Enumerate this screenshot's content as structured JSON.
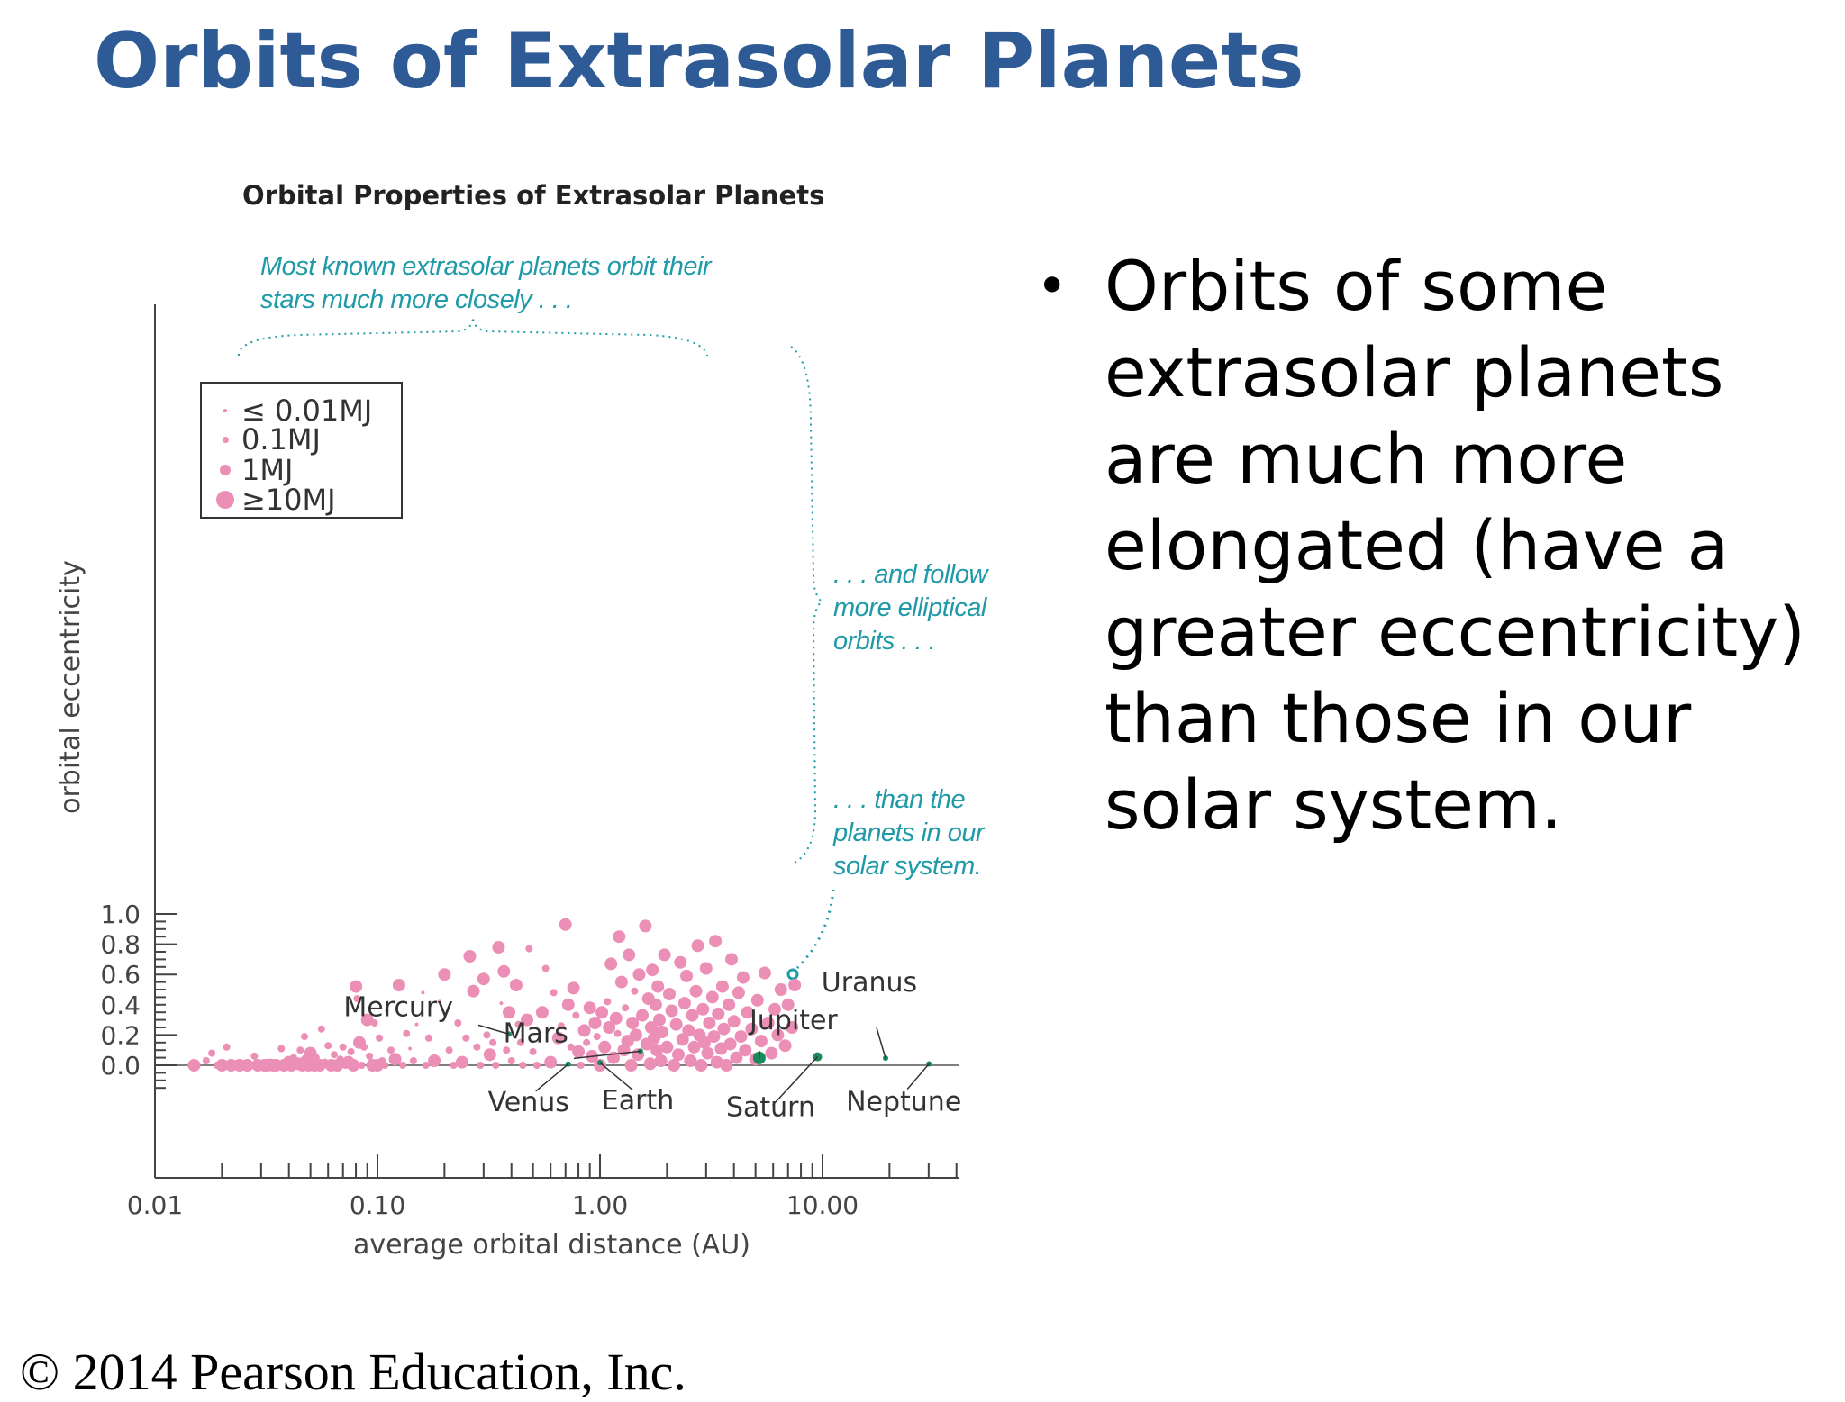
{
  "slide": {
    "title": "Orbits of Extrasolar Planets",
    "bullet": "Orbits of some extrasolar planets are much more elongated (have a greater eccentricity) than those in our solar system.",
    "copyright": "© 2014 Pearson Education, Inc."
  },
  "colors": {
    "title": "#2e5b95",
    "exoplanet": "#ec8fb6",
    "solar_planet": "#1a8a5a",
    "annotation": "#1f9aa8"
  },
  "chart_data": {
    "type": "scatter",
    "title": "Orbital Properties of Extrasolar Planets",
    "xlabel": "average orbital distance (AU)",
    "ylabel": "orbital eccentricity",
    "x_scale": "log",
    "xlim": [
      0.01,
      40
    ],
    "ylim": [
      -0.15,
      1.0
    ],
    "x_ticks": [
      "0.01",
      "0.10",
      "1.00",
      "10.00"
    ],
    "y_ticks": [
      "0.0",
      "0.2",
      "0.4",
      "0.6",
      "0.8",
      "1.0"
    ],
    "grid": false,
    "legend": {
      "placement": "top-left",
      "entries": [
        {
          "label": "≤ 0.01MJ",
          "size": 1
        },
        {
          "label": "0.1MJ",
          "size": 2
        },
        {
          "label": "1MJ",
          "size": 3
        },
        {
          "label": "≥10MJ",
          "size": 4
        }
      ]
    },
    "annotations": [
      "Most known extrasolar planets orbit their\nstars much more closely . . .",
      ". . . and follow\nmore elliptical\norbits . . .",
      ". . . than the\nplanets in our\nsolar system."
    ],
    "solar_system": [
      {
        "name": "Mercury",
        "x": 0.39,
        "y": 0.206
      },
      {
        "name": "Venus",
        "x": 0.72,
        "y": 0.007
      },
      {
        "name": "Earth",
        "x": 1.0,
        "y": 0.017
      },
      {
        "name": "Mars",
        "x": 1.52,
        "y": 0.093
      },
      {
        "name": "Jupiter",
        "x": 5.2,
        "y": 0.048
      },
      {
        "name": "Saturn",
        "x": 9.5,
        "y": 0.056
      },
      {
        "name": "Uranus",
        "x": 19.2,
        "y": 0.047
      },
      {
        "name": "Neptune",
        "x": 30.1,
        "y": 0.009
      }
    ],
    "series": [
      {
        "points": [
          [
            0.015,
            0.0,
            3
          ],
          [
            0.017,
            0.03,
            2
          ],
          [
            0.018,
            0.08,
            2
          ],
          [
            0.019,
            0.0,
            2
          ],
          [
            0.02,
            0.0,
            3
          ],
          [
            0.021,
            0.12,
            2
          ],
          [
            0.022,
            0.0,
            3
          ],
          [
            0.023,
            0.01,
            2
          ],
          [
            0.024,
            0.0,
            3
          ],
          [
            0.025,
            0.0,
            2
          ],
          [
            0.026,
            0.0,
            3
          ],
          [
            0.027,
            0.0,
            2
          ],
          [
            0.028,
            0.06,
            2
          ],
          [
            0.029,
            0.0,
            3
          ],
          [
            0.03,
            0.01,
            2
          ],
          [
            0.031,
            0.0,
            3
          ],
          [
            0.032,
            0.0,
            3
          ],
          [
            0.033,
            0.02,
            2
          ],
          [
            0.034,
            0.0,
            3
          ],
          [
            0.035,
            0.0,
            3
          ],
          [
            0.036,
            0.0,
            2
          ],
          [
            0.037,
            0.11,
            2
          ],
          [
            0.038,
            0.0,
            3
          ],
          [
            0.04,
            0.02,
            3
          ],
          [
            0.041,
            0.0,
            3
          ],
          [
            0.042,
            0.05,
            2
          ],
          [
            0.043,
            0.0,
            2
          ],
          [
            0.044,
            0.01,
            3
          ],
          [
            0.045,
            0.1,
            2
          ],
          [
            0.046,
            0.0,
            3
          ],
          [
            0.047,
            0.19,
            2
          ],
          [
            0.048,
            0.03,
            3
          ],
          [
            0.049,
            0.0,
            3
          ],
          [
            0.05,
            0.08,
            3
          ],
          [
            0.052,
            0.0,
            3
          ],
          [
            0.053,
            0.05,
            2
          ],
          [
            0.055,
            0.0,
            3
          ],
          [
            0.056,
            0.24,
            2
          ],
          [
            0.058,
            0.02,
            2
          ],
          [
            0.06,
            0.13,
            2
          ],
          [
            0.062,
            0.0,
            3
          ],
          [
            0.064,
            0.07,
            2
          ],
          [
            0.066,
            0.0,
            3
          ],
          [
            0.068,
            0.04,
            2
          ],
          [
            0.07,
            0.12,
            2
          ],
          [
            0.072,
            0.0,
            2
          ],
          [
            0.074,
            0.02,
            3
          ],
          [
            0.076,
            0.09,
            2
          ],
          [
            0.078,
            0.0,
            3
          ],
          [
            0.08,
            0.52,
            3
          ],
          [
            0.081,
            0.44,
            2
          ],
          [
            0.083,
            0.15,
            3
          ],
          [
            0.085,
            0.0,
            2
          ],
          [
            0.087,
            0.12,
            2
          ],
          [
            0.09,
            0.3,
            3
          ],
          [
            0.092,
            0.06,
            2
          ],
          [
            0.095,
            0.0,
            3
          ],
          [
            0.097,
            0.28,
            2
          ],
          [
            0.1,
            0.0,
            3
          ],
          [
            0.102,
            0.18,
            2
          ],
          [
            0.105,
            0.03,
            2
          ],
          [
            0.108,
            0.0,
            2
          ],
          [
            0.11,
            0.36,
            1
          ],
          [
            0.115,
            0.1,
            2
          ],
          [
            0.12,
            0.04,
            3
          ],
          [
            0.125,
            0.53,
            3
          ],
          [
            0.13,
            0.0,
            2
          ],
          [
            0.135,
            0.21,
            2
          ],
          [
            0.14,
            0.11,
            1
          ],
          [
            0.145,
            0.03,
            2
          ],
          [
            0.15,
            0.27,
            1
          ],
          [
            0.16,
            0.48,
            1
          ],
          [
            0.165,
            0.0,
            2
          ],
          [
            0.17,
            0.18,
            2
          ],
          [
            0.18,
            0.03,
            3
          ],
          [
            0.19,
            0.42,
            1
          ],
          [
            0.2,
            0.6,
            3
          ],
          [
            0.21,
            0.1,
            2
          ],
          [
            0.22,
            0.0,
            2
          ],
          [
            0.23,
            0.28,
            2
          ],
          [
            0.24,
            0.02,
            3
          ],
          [
            0.25,
            0.18,
            2
          ],
          [
            0.26,
            0.72,
            3
          ],
          [
            0.27,
            0.49,
            3
          ],
          [
            0.28,
            0.12,
            2
          ],
          [
            0.29,
            0.0,
            2
          ],
          [
            0.3,
            0.57,
            3
          ],
          [
            0.31,
            0.2,
            2
          ],
          [
            0.32,
            0.07,
            3
          ],
          [
            0.33,
            0.15,
            2
          ],
          [
            0.34,
            0.0,
            2
          ],
          [
            0.35,
            0.78,
            3
          ],
          [
            0.36,
            0.41,
            1
          ],
          [
            0.37,
            0.62,
            3
          ],
          [
            0.38,
            0.1,
            2
          ],
          [
            0.39,
            0.35,
            3
          ],
          [
            0.4,
            0.03,
            2
          ],
          [
            0.42,
            0.53,
            3
          ],
          [
            0.43,
            0.27,
            2
          ],
          [
            0.44,
            0.15,
            2
          ],
          [
            0.45,
            0.0,
            2
          ],
          [
            0.47,
            0.3,
            3
          ],
          [
            0.48,
            0.77,
            2
          ],
          [
            0.5,
            0.09,
            2
          ],
          [
            0.52,
            0.0,
            2
          ],
          [
            0.55,
            0.35,
            3
          ],
          [
            0.57,
            0.64,
            2
          ],
          [
            0.6,
            0.02,
            3
          ],
          [
            0.62,
            0.48,
            2
          ],
          [
            0.65,
            0.18,
            3
          ],
          [
            0.67,
            0.26,
            2
          ],
          [
            0.7,
            0.93,
            3
          ],
          [
            0.72,
            0.4,
            3
          ],
          [
            0.74,
            0.12,
            2
          ],
          [
            0.76,
            0.51,
            3
          ],
          [
            0.78,
            0.33,
            2
          ],
          [
            0.8,
            0.09,
            3
          ],
          [
            0.82,
            0.0,
            2
          ],
          [
            0.85,
            0.23,
            3
          ],
          [
            0.87,
            0.15,
            2
          ],
          [
            0.9,
            0.38,
            3
          ],
          [
            0.92,
            0.06,
            3
          ],
          [
            0.95,
            0.28,
            3
          ],
          [
            0.97,
            0.19,
            2
          ],
          [
            1.0,
            0.0,
            3
          ],
          [
            1.02,
            0.35,
            3
          ],
          [
            1.05,
            0.12,
            3
          ],
          [
            1.08,
            0.42,
            2
          ],
          [
            1.1,
            0.25,
            3
          ],
          [
            1.12,
            0.67,
            3
          ],
          [
            1.15,
            0.05,
            3
          ],
          [
            1.18,
            0.31,
            3
          ],
          [
            1.2,
            0.21,
            2
          ],
          [
            1.22,
            0.85,
            3
          ],
          [
            1.25,
            0.55,
            3
          ],
          [
            1.28,
            0.1,
            3
          ],
          [
            1.3,
            0.38,
            2
          ],
          [
            1.33,
            0.16,
            3
          ],
          [
            1.35,
            0.73,
            3
          ],
          [
            1.38,
            0.0,
            3
          ],
          [
            1.4,
            0.28,
            3
          ],
          [
            1.43,
            0.49,
            2
          ],
          [
            1.45,
            0.2,
            3
          ],
          [
            1.48,
            0.07,
            3
          ],
          [
            1.5,
            0.6,
            3
          ],
          [
            1.55,
            0.33,
            3
          ],
          [
            1.6,
            0.92,
            3
          ],
          [
            1.62,
            0.14,
            3
          ],
          [
            1.65,
            0.44,
            3
          ],
          [
            1.68,
            0.01,
            3
          ],
          [
            1.7,
            0.25,
            3
          ],
          [
            1.72,
            0.63,
            3
          ],
          [
            1.75,
            0.18,
            3
          ],
          [
            1.78,
            0.4,
            3
          ],
          [
            1.8,
            0.1,
            3
          ],
          [
            1.82,
            0.52,
            3
          ],
          [
            1.85,
            0.3,
            3
          ],
          [
            1.88,
            0.03,
            3
          ],
          [
            1.9,
            0.22,
            3
          ],
          [
            1.95,
            0.73,
            3
          ],
          [
            2.0,
            0.12,
            3
          ],
          [
            2.05,
            0.47,
            3
          ],
          [
            2.1,
            0.36,
            3
          ],
          [
            2.15,
            0.0,
            3
          ],
          [
            2.2,
            0.27,
            3
          ],
          [
            2.25,
            0.07,
            3
          ],
          [
            2.3,
            0.68,
            3
          ],
          [
            2.35,
            0.17,
            3
          ],
          [
            2.4,
            0.41,
            3
          ],
          [
            2.45,
            0.59,
            3
          ],
          [
            2.5,
            0.23,
            3
          ],
          [
            2.55,
            0.03,
            3
          ],
          [
            2.6,
            0.33,
            3
          ],
          [
            2.65,
            0.12,
            3
          ],
          [
            2.7,
            0.49,
            3
          ],
          [
            2.75,
            0.79,
            3
          ],
          [
            2.8,
            0.2,
            3
          ],
          [
            2.85,
            0.0,
            3
          ],
          [
            2.9,
            0.37,
            3
          ],
          [
            2.95,
            0.15,
            3
          ],
          [
            3.0,
            0.64,
            3
          ],
          [
            3.05,
            0.08,
            3
          ],
          [
            3.1,
            0.28,
            3
          ],
          [
            3.2,
            0.45,
            3
          ],
          [
            3.25,
            0.19,
            3
          ],
          [
            3.3,
            0.82,
            3
          ],
          [
            3.35,
            0.02,
            3
          ],
          [
            3.4,
            0.34,
            3
          ],
          [
            3.5,
            0.11,
            3
          ],
          [
            3.55,
            0.52,
            3
          ],
          [
            3.6,
            0.24,
            3
          ],
          [
            3.7,
            0.0,
            3
          ],
          [
            3.8,
            0.4,
            3
          ],
          [
            3.85,
            0.14,
            3
          ],
          [
            3.9,
            0.7,
            3
          ],
          [
            4.0,
            0.29,
            3
          ],
          [
            4.1,
            0.05,
            3
          ],
          [
            4.2,
            0.48,
            3
          ],
          [
            4.3,
            0.19,
            3
          ],
          [
            4.4,
            0.58,
            3
          ],
          [
            4.5,
            0.1,
            3
          ],
          [
            4.6,
            0.35,
            3
          ],
          [
            4.8,
            0.24,
            3
          ],
          [
            5.0,
            0.04,
            3
          ],
          [
            5.1,
            0.43,
            3
          ],
          [
            5.3,
            0.16,
            3
          ],
          [
            5.5,
            0.61,
            3
          ],
          [
            5.7,
            0.28,
            3
          ],
          [
            5.9,
            0.08,
            3
          ],
          [
            6.1,
            0.37,
            3
          ],
          [
            6.3,
            0.2,
            3
          ],
          [
            6.5,
            0.5,
            3
          ],
          [
            6.8,
            0.13,
            3
          ],
          [
            7.0,
            0.4,
            3
          ],
          [
            7.3,
            0.25,
            3
          ],
          [
            7.5,
            0.53,
            3
          ]
        ]
      }
    ]
  }
}
